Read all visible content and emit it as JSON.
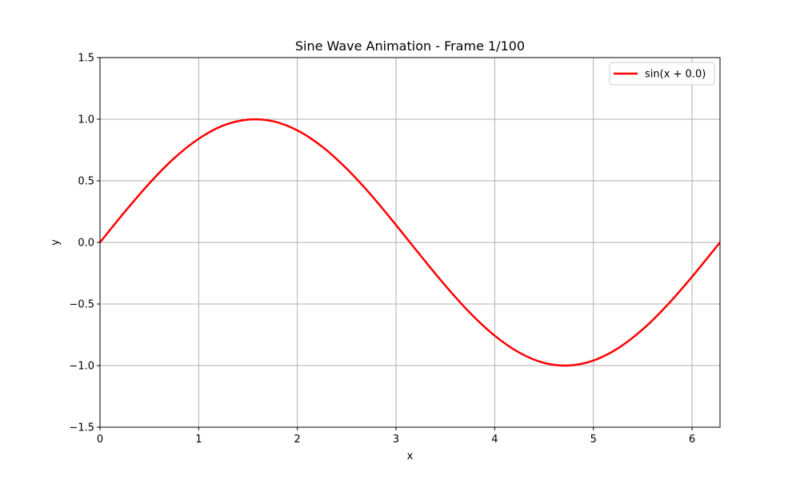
{
  "chart_data": {
    "type": "line",
    "title": "Sine Wave Animation - Frame 1/100",
    "xlabel": "x",
    "ylabel": "y",
    "xlim": [
      0,
      6.283
    ],
    "ylim": [
      -1.5,
      1.5
    ],
    "x_ticks": [
      0,
      1,
      2,
      3,
      4,
      5,
      6
    ],
    "x_tick_labels": [
      "0",
      "1",
      "2",
      "3",
      "4",
      "5",
      "6"
    ],
    "y_ticks": [
      -1.5,
      -1.0,
      -0.5,
      0.0,
      0.5,
      1.0,
      1.5
    ],
    "y_tick_labels": [
      "−1.5",
      "−1.0",
      "−0.5",
      "0.0",
      "0.5",
      "1.0",
      "1.5"
    ],
    "grid": true,
    "legend_position": "top-right",
    "series": [
      {
        "name": "sin(x + 0.0)",
        "color": "#ff0000",
        "x": [
          0.0,
          0.25,
          0.5,
          0.75,
          1.0,
          1.25,
          1.5,
          1.75,
          2.0,
          2.25,
          2.5,
          2.75,
          3.0,
          3.25,
          3.5,
          3.75,
          4.0,
          4.25,
          4.5,
          4.75,
          5.0,
          5.25,
          5.5,
          5.75,
          6.0,
          6.283
        ],
        "y": [
          0.0,
          0.247,
          0.479,
          0.682,
          0.841,
          0.949,
          0.997,
          0.984,
          0.909,
          0.778,
          0.598,
          0.382,
          0.141,
          -0.108,
          -0.351,
          -0.572,
          -0.757,
          -0.895,
          -0.978,
          -0.999,
          -0.959,
          -0.859,
          -0.706,
          -0.508,
          -0.279,
          0.0
        ]
      }
    ]
  }
}
